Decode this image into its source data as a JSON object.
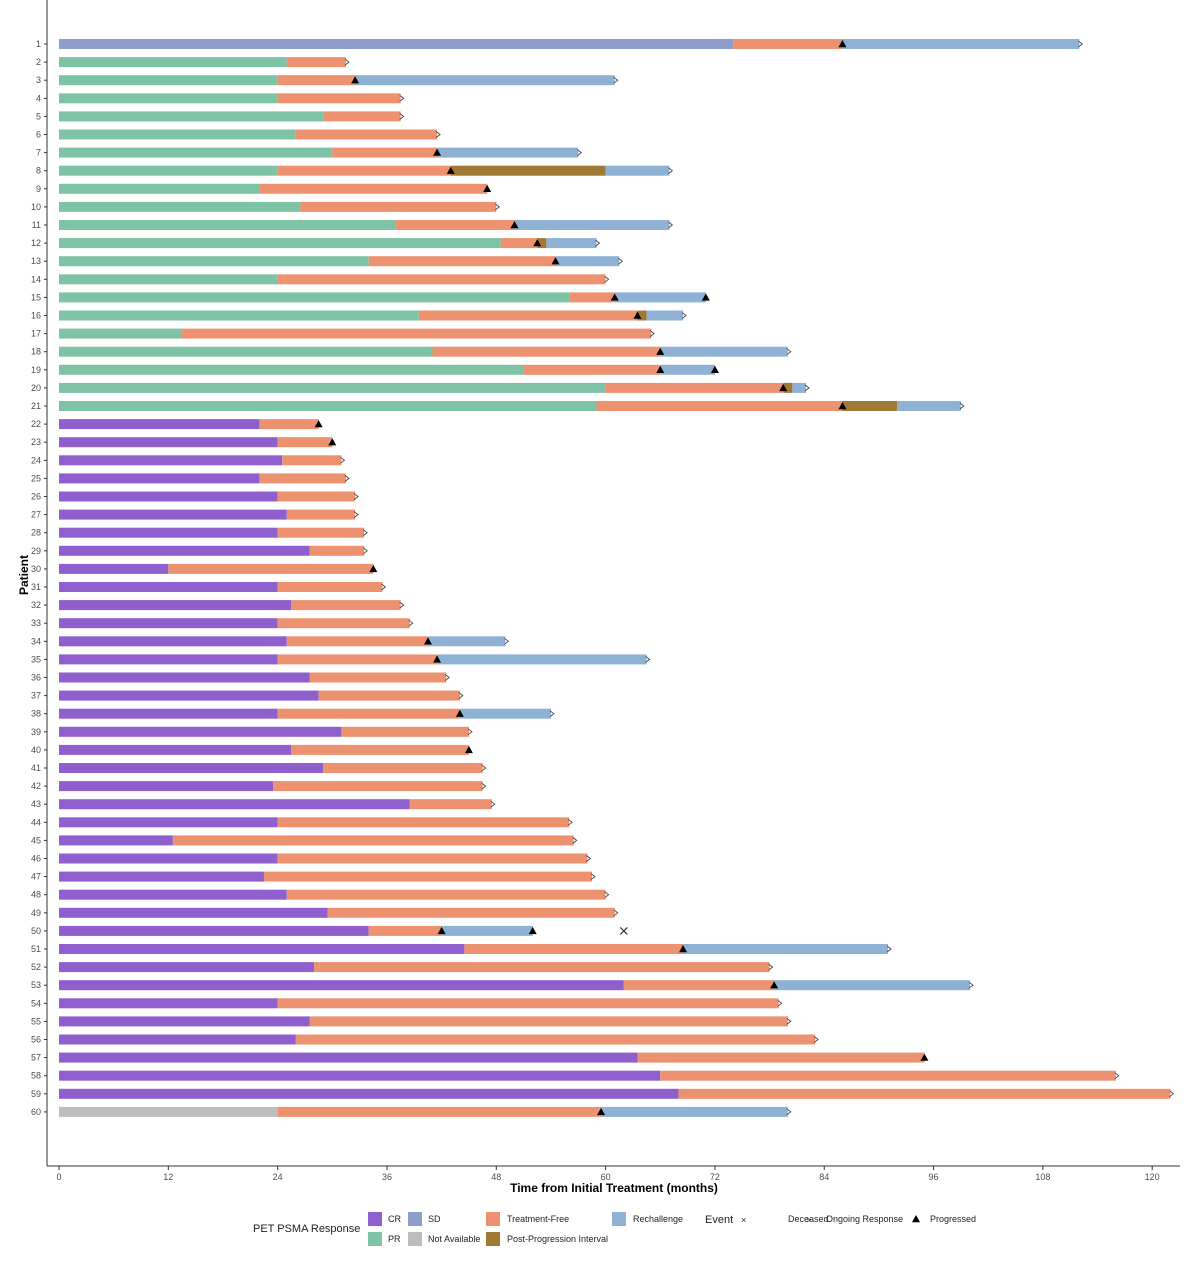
{
  "chart_data": {
    "type": "swimmer",
    "xlabel": "Time from Initial Treatment (months)",
    "ylabel": "Patient",
    "xlim": [
      0,
      122
    ],
    "x_ticks": [
      0,
      12,
      24,
      36,
      48,
      60,
      72,
      84,
      96,
      108,
      120
    ],
    "grid": false,
    "legend_position": "bottom",
    "colors": {
      "CR": "#8f5fce",
      "SD": "#8c9fca",
      "PR": "#7fc3a6",
      "Not Available": "#bdbdbd",
      "Treatment-Free": "#ec9271",
      "Rechallenge": "#8fb1d4",
      "Post-Progression Interval": "#a07a35"
    },
    "legend": {
      "response_title": "PET PSMA Response",
      "response_items": [
        "CR",
        "SD",
        "PR",
        "Not Available"
      ],
      "phase_items": [
        "Treatment-Free",
        "Post-Progression Interval",
        "Rechallenge"
      ],
      "event_title": "Event",
      "event_items": [
        {
          "symbol": "×",
          "label": "Deceased"
        },
        {
          "symbol": ">",
          "label": "Ongoing Response"
        },
        {
          "symbol": "▲",
          "label": "Progressed"
        }
      ]
    },
    "patients": [
      {
        "id": "1",
        "response": "SD",
        "treatment_end": 74,
        "segments": [
          {
            "phase": "Treatment-Free",
            "end": 86
          },
          {
            "phase": "Rechallenge",
            "end": 112
          }
        ],
        "progressed": [
          86
        ],
        "ongoing": true
      },
      {
        "id": "2",
        "response": "PR",
        "treatment_end": 25,
        "segments": [
          {
            "phase": "Treatment-Free",
            "end": 31.5
          }
        ],
        "progressed": [],
        "ongoing": true
      },
      {
        "id": "3",
        "response": "PR",
        "treatment_end": 24,
        "segments": [
          {
            "phase": "Treatment-Free",
            "end": 32.5
          },
          {
            "phase": "Rechallenge",
            "end": 61
          }
        ],
        "progressed": [
          32.5
        ],
        "ongoing": true
      },
      {
        "id": "4",
        "response": "PR",
        "treatment_end": 24,
        "segments": [
          {
            "phase": "Treatment-Free",
            "end": 37.5
          }
        ],
        "progressed": [],
        "ongoing": true
      },
      {
        "id": "5",
        "response": "PR",
        "treatment_end": 29,
        "segments": [
          {
            "phase": "Treatment-Free",
            "end": 37.5
          }
        ],
        "progressed": [],
        "ongoing": true
      },
      {
        "id": "6",
        "response": "PR",
        "treatment_end": 26,
        "segments": [
          {
            "phase": "Treatment-Free",
            "end": 41.5
          }
        ],
        "progressed": [],
        "ongoing": true
      },
      {
        "id": "7",
        "response": "PR",
        "treatment_end": 30,
        "segments": [
          {
            "phase": "Treatment-Free",
            "end": 41.5
          },
          {
            "phase": "Rechallenge",
            "end": 57
          }
        ],
        "progressed": [
          41.5
        ],
        "ongoing": true
      },
      {
        "id": "8",
        "response": "PR",
        "treatment_end": 24,
        "segments": [
          {
            "phase": "Treatment-Free",
            "end": 43
          },
          {
            "phase": "Post-Progression Interval",
            "end": 60
          },
          {
            "phase": "Rechallenge",
            "end": 67
          }
        ],
        "progressed": [
          43
        ],
        "ongoing": true
      },
      {
        "id": "9",
        "response": "PR",
        "treatment_end": 22,
        "segments": [
          {
            "phase": "Treatment-Free",
            "end": 47
          }
        ],
        "progressed": [
          47
        ],
        "ongoing": false
      },
      {
        "id": "10",
        "response": "PR",
        "treatment_end": 26.5,
        "segments": [
          {
            "phase": "Treatment-Free",
            "end": 48
          }
        ],
        "progressed": [],
        "ongoing": true
      },
      {
        "id": "11",
        "response": "PR",
        "treatment_end": 37,
        "segments": [
          {
            "phase": "Treatment-Free",
            "end": 50
          },
          {
            "phase": "Rechallenge",
            "end": 67
          }
        ],
        "progressed": [
          50
        ],
        "ongoing": true
      },
      {
        "id": "12",
        "response": "PR",
        "treatment_end": 48.5,
        "segments": [
          {
            "phase": "Treatment-Free",
            "end": 52.5
          },
          {
            "phase": "Post-Progression Interval",
            "end": 53.5
          },
          {
            "phase": "Rechallenge",
            "end": 59
          }
        ],
        "progressed": [
          52.5
        ],
        "ongoing": true
      },
      {
        "id": "13",
        "response": "PR",
        "treatment_end": 34,
        "segments": [
          {
            "phase": "Treatment-Free",
            "end": 54.5
          },
          {
            "phase": "Rechallenge",
            "end": 61.5
          }
        ],
        "progressed": [
          54.5
        ],
        "ongoing": true
      },
      {
        "id": "14",
        "response": "PR",
        "treatment_end": 24,
        "segments": [
          {
            "phase": "Treatment-Free",
            "end": 60
          }
        ],
        "progressed": [],
        "ongoing": true
      },
      {
        "id": "15",
        "response": "PR",
        "treatment_end": 56,
        "segments": [
          {
            "phase": "Treatment-Free",
            "end": 61
          },
          {
            "phase": "Rechallenge",
            "end": 71
          }
        ],
        "progressed": [
          61,
          71
        ],
        "ongoing": false
      },
      {
        "id": "16",
        "response": "PR",
        "treatment_end": 39.5,
        "segments": [
          {
            "phase": "Treatment-Free",
            "end": 63.5
          },
          {
            "phase": "Post-Progression Interval",
            "end": 64.5
          },
          {
            "phase": "Rechallenge",
            "end": 68.5
          }
        ],
        "progressed": [
          63.5
        ],
        "ongoing": true
      },
      {
        "id": "17",
        "response": "PR",
        "treatment_end": 13.5,
        "segments": [
          {
            "phase": "Treatment-Free",
            "end": 65
          }
        ],
        "progressed": [],
        "ongoing": true
      },
      {
        "id": "18",
        "response": "PR",
        "treatment_end": 41,
        "segments": [
          {
            "phase": "Treatment-Free",
            "end": 66
          },
          {
            "phase": "Rechallenge",
            "end": 80
          }
        ],
        "progressed": [
          66
        ],
        "ongoing": true
      },
      {
        "id": "19",
        "response": "PR",
        "treatment_end": 51,
        "segments": [
          {
            "phase": "Treatment-Free",
            "end": 66
          },
          {
            "phase": "Rechallenge",
            "end": 72
          }
        ],
        "progressed": [
          66,
          72
        ],
        "ongoing": false
      },
      {
        "id": "20",
        "response": "PR",
        "treatment_end": 60,
        "segments": [
          {
            "phase": "Treatment-Free",
            "end": 79.5
          },
          {
            "phase": "Post-Progression Interval",
            "end": 80.5
          },
          {
            "phase": "Rechallenge",
            "end": 82
          }
        ],
        "progressed": [
          79.5
        ],
        "ongoing": true
      },
      {
        "id": "21",
        "response": "PR",
        "treatment_end": 59,
        "segments": [
          {
            "phase": "Treatment-Free",
            "end": 86
          },
          {
            "phase": "Post-Progression Interval",
            "end": 92
          },
          {
            "phase": "Rechallenge",
            "end": 99
          }
        ],
        "progressed": [
          86
        ],
        "ongoing": true
      },
      {
        "id": "22",
        "response": "CR",
        "treatment_end": 22,
        "segments": [
          {
            "phase": "Treatment-Free",
            "end": 28.5
          }
        ],
        "progressed": [
          28.5
        ],
        "ongoing": false
      },
      {
        "id": "23",
        "response": "CR",
        "treatment_end": 24,
        "segments": [
          {
            "phase": "Treatment-Free",
            "end": 30
          }
        ],
        "progressed": [
          30
        ],
        "ongoing": false
      },
      {
        "id": "24",
        "response": "CR",
        "treatment_end": 24.5,
        "segments": [
          {
            "phase": "Treatment-Free",
            "end": 31
          }
        ],
        "progressed": [],
        "ongoing": true
      },
      {
        "id": "25",
        "response": "CR",
        "treatment_end": 22,
        "segments": [
          {
            "phase": "Treatment-Free",
            "end": 31.5
          }
        ],
        "progressed": [],
        "ongoing": true
      },
      {
        "id": "26",
        "response": "CR",
        "treatment_end": 24,
        "segments": [
          {
            "phase": "Treatment-Free",
            "end": 32.5
          }
        ],
        "progressed": [],
        "ongoing": true
      },
      {
        "id": "27",
        "response": "CR",
        "treatment_end": 25,
        "segments": [
          {
            "phase": "Treatment-Free",
            "end": 32.5
          }
        ],
        "progressed": [],
        "ongoing": true
      },
      {
        "id": "28",
        "response": "CR",
        "treatment_end": 24,
        "segments": [
          {
            "phase": "Treatment-Free",
            "end": 33.5
          }
        ],
        "progressed": [],
        "ongoing": true
      },
      {
        "id": "29",
        "response": "CR",
        "treatment_end": 27.5,
        "segments": [
          {
            "phase": "Treatment-Free",
            "end": 33.5
          }
        ],
        "progressed": [],
        "ongoing": true
      },
      {
        "id": "30",
        "response": "CR",
        "treatment_end": 12,
        "segments": [
          {
            "phase": "Treatment-Free",
            "end": 34.5
          }
        ],
        "progressed": [
          34.5
        ],
        "ongoing": false
      },
      {
        "id": "31",
        "response": "CR",
        "treatment_end": 24,
        "segments": [
          {
            "phase": "Treatment-Free",
            "end": 35.5
          }
        ],
        "progressed": [],
        "ongoing": true
      },
      {
        "id": "32",
        "response": "CR",
        "treatment_end": 25.5,
        "segments": [
          {
            "phase": "Treatment-Free",
            "end": 37.5
          }
        ],
        "progressed": [],
        "ongoing": true
      },
      {
        "id": "33",
        "response": "CR",
        "treatment_end": 24,
        "segments": [
          {
            "phase": "Treatment-Free",
            "end": 38.5
          }
        ],
        "progressed": [],
        "ongoing": true
      },
      {
        "id": "34",
        "response": "CR",
        "treatment_end": 25,
        "segments": [
          {
            "phase": "Treatment-Free",
            "end": 40.5
          },
          {
            "phase": "Rechallenge",
            "end": 49
          }
        ],
        "progressed": [
          40.5
        ],
        "ongoing": true
      },
      {
        "id": "35",
        "response": "CR",
        "treatment_end": 24,
        "segments": [
          {
            "phase": "Treatment-Free",
            "end": 41.5
          },
          {
            "phase": "Rechallenge",
            "end": 64.5
          }
        ],
        "progressed": [
          41.5
        ],
        "ongoing": true
      },
      {
        "id": "36",
        "response": "CR",
        "treatment_end": 27.5,
        "segments": [
          {
            "phase": "Treatment-Free",
            "end": 42.5
          }
        ],
        "progressed": [],
        "ongoing": true
      },
      {
        "id": "37",
        "response": "CR",
        "treatment_end": 28.5,
        "segments": [
          {
            "phase": "Treatment-Free",
            "end": 44
          }
        ],
        "progressed": [],
        "ongoing": true
      },
      {
        "id": "38",
        "response": "CR",
        "treatment_end": 24,
        "segments": [
          {
            "phase": "Treatment-Free",
            "end": 44
          },
          {
            "phase": "Rechallenge",
            "end": 54
          }
        ],
        "progressed": [
          44
        ],
        "ongoing": true
      },
      {
        "id": "39",
        "response": "CR",
        "treatment_end": 31,
        "segments": [
          {
            "phase": "Treatment-Free",
            "end": 45
          }
        ],
        "progressed": [],
        "ongoing": true
      },
      {
        "id": "40",
        "response": "CR",
        "treatment_end": 25.5,
        "segments": [
          {
            "phase": "Treatment-Free",
            "end": 45
          }
        ],
        "progressed": [
          45
        ],
        "ongoing": false
      },
      {
        "id": "41",
        "response": "CR",
        "treatment_end": 29,
        "segments": [
          {
            "phase": "Treatment-Free",
            "end": 46.5
          }
        ],
        "progressed": [],
        "ongoing": true
      },
      {
        "id": "42",
        "response": "CR",
        "treatment_end": 23.5,
        "segments": [
          {
            "phase": "Treatment-Free",
            "end": 46.5
          }
        ],
        "progressed": [],
        "ongoing": true
      },
      {
        "id": "43",
        "response": "CR",
        "treatment_end": 38.5,
        "segments": [
          {
            "phase": "Treatment-Free",
            "end": 47.5
          }
        ],
        "progressed": [],
        "ongoing": true
      },
      {
        "id": "44",
        "response": "CR",
        "treatment_end": 24,
        "segments": [
          {
            "phase": "Treatment-Free",
            "end": 56
          }
        ],
        "progressed": [],
        "ongoing": true
      },
      {
        "id": "45",
        "response": "CR",
        "treatment_end": 12.5,
        "segments": [
          {
            "phase": "Treatment-Free",
            "end": 56.5
          }
        ],
        "progressed": [],
        "ongoing": true
      },
      {
        "id": "46",
        "response": "CR",
        "treatment_end": 24,
        "segments": [
          {
            "phase": "Treatment-Free",
            "end": 58
          }
        ],
        "progressed": [],
        "ongoing": true
      },
      {
        "id": "47",
        "response": "CR",
        "treatment_end": 22.5,
        "segments": [
          {
            "phase": "Treatment-Free",
            "end": 58.5
          }
        ],
        "progressed": [],
        "ongoing": true
      },
      {
        "id": "48",
        "response": "CR",
        "treatment_end": 25,
        "segments": [
          {
            "phase": "Treatment-Free",
            "end": 60
          }
        ],
        "progressed": [],
        "ongoing": true
      },
      {
        "id": "49",
        "response": "CR",
        "treatment_end": 29.5,
        "segments": [
          {
            "phase": "Treatment-Free",
            "end": 61
          }
        ],
        "progressed": [],
        "ongoing": true
      },
      {
        "id": "50",
        "response": "CR",
        "treatment_end": 34,
        "segments": [
          {
            "phase": "Treatment-Free",
            "end": 42
          },
          {
            "phase": "Rechallenge",
            "end": 52
          }
        ],
        "progressed": [
          42,
          52
        ],
        "ongoing": false,
        "deceased": 62
      },
      {
        "id": "51",
        "response": "CR",
        "treatment_end": 44.5,
        "segments": [
          {
            "phase": "Treatment-Free",
            "end": 68.5
          },
          {
            "phase": "Rechallenge",
            "end": 91
          }
        ],
        "progressed": [
          68.5
        ],
        "ongoing": true
      },
      {
        "id": "52",
        "response": "CR",
        "treatment_end": 28,
        "segments": [
          {
            "phase": "Treatment-Free",
            "end": 78
          }
        ],
        "progressed": [],
        "ongoing": true
      },
      {
        "id": "53",
        "response": "CR",
        "treatment_end": 62,
        "segments": [
          {
            "phase": "Treatment-Free",
            "end": 78.5
          },
          {
            "phase": "Rechallenge",
            "end": 100
          }
        ],
        "progressed": [
          78.5
        ],
        "ongoing": true
      },
      {
        "id": "54",
        "response": "CR",
        "treatment_end": 24,
        "segments": [
          {
            "phase": "Treatment-Free",
            "end": 79
          }
        ],
        "progressed": [],
        "ongoing": true
      },
      {
        "id": "55",
        "response": "CR",
        "treatment_end": 27.5,
        "segments": [
          {
            "phase": "Treatment-Free",
            "end": 80
          }
        ],
        "progressed": [],
        "ongoing": true
      },
      {
        "id": "56",
        "response": "CR",
        "treatment_end": 26,
        "segments": [
          {
            "phase": "Treatment-Free",
            "end": 83
          }
        ],
        "progressed": [],
        "ongoing": true
      },
      {
        "id": "57",
        "response": "CR",
        "treatment_end": 63.5,
        "segments": [
          {
            "phase": "Treatment-Free",
            "end": 95
          }
        ],
        "progressed": [
          95
        ],
        "ongoing": false
      },
      {
        "id": "58",
        "response": "CR",
        "treatment_end": 66,
        "segments": [
          {
            "phase": "Treatment-Free",
            "end": 116
          }
        ],
        "progressed": [],
        "ongoing": true
      },
      {
        "id": "59",
        "response": "CR",
        "treatment_end": 68,
        "segments": [
          {
            "phase": "Treatment-Free",
            "end": 122
          }
        ],
        "progressed": [],
        "ongoing": true
      },
      {
        "id": "60",
        "response": "Not Available",
        "treatment_end": 24,
        "segments": [
          {
            "phase": "Treatment-Free",
            "end": 59.5
          },
          {
            "phase": "Rechallenge",
            "end": 80
          }
        ],
        "progressed": [
          59.5
        ],
        "ongoing": true
      }
    ]
  }
}
